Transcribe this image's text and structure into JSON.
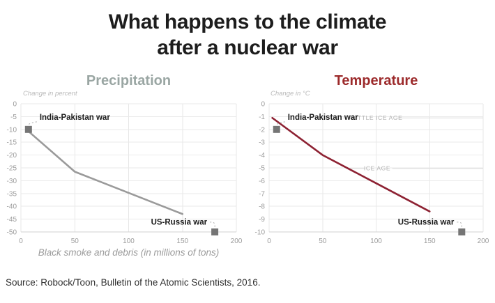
{
  "title": {
    "line1": "What happens to the climate",
    "line2": "after a nuclear war"
  },
  "source_note": "Source: Robock/Toon, Bulletin of the Atomic Scientists, 2016.",
  "colors": {
    "title_text": "#1d1d1d",
    "precipitation_accent": "#9aa6a3",
    "temperature_accent": "#9c2a2b",
    "precipitation_line": "#9a9a9a",
    "temperature_line": "#8d2132",
    "marker": "#757575",
    "grid": "#eaeaea",
    "axis_text": "#9b9b9b",
    "annotation_text": "#1b1b1b",
    "reference_text": "#b1b1b1"
  },
  "chart_data": [
    {
      "type": "line",
      "title": "Precipitation",
      "unit_label": "Change in percent",
      "xlabel": "Black smoke and debris (in millions of tons)",
      "x": [
        5,
        50,
        150
      ],
      "y": [
        -10,
        -26.5,
        -43
      ],
      "xlim": [
        0,
        200
      ],
      "ylim": [
        0,
        -50
      ],
      "xticks": [
        0,
        50,
        100,
        150,
        200
      ],
      "ytick_step": 5,
      "grid": true,
      "legend": "none",
      "line_color": "#9a9a9a",
      "title_color": "#9aa6a3",
      "markers": [
        {
          "label": "India-Pakistan war",
          "x": 7,
          "y": -10,
          "label_pos": "right-up"
        },
        {
          "label": "US-Russia war",
          "x": 180,
          "y": -50,
          "label_pos": "left-up"
        }
      ]
    },
    {
      "type": "line",
      "title": "Temperature",
      "unit_label": "Change in °C",
      "xlabel": "",
      "x": [
        3,
        50,
        100,
        150
      ],
      "y": [
        -1.1,
        -4.0,
        -6.2,
        -8.4
      ],
      "xlim": [
        0,
        200
      ],
      "ylim": [
        0,
        -10
      ],
      "xticks": [
        0,
        50,
        100,
        150,
        200
      ],
      "ytick_step": 1,
      "grid": true,
      "legend": "none",
      "line_color": "#8d2132",
      "title_color": "#9c2a2b",
      "reference_lines": [
        {
          "label": "LITTLE ICE AGE",
          "y": -1.1,
          "label_x": 101,
          "segments": [
            [
              69,
              83
            ],
            [
              120,
              200
            ]
          ]
        },
        {
          "label": "ICE AGE",
          "y": -5.05,
          "label_x": 101,
          "segments": [
            [
              74,
              90
            ],
            [
              115,
              200
            ]
          ]
        }
      ],
      "markers": [
        {
          "label": "India-Pakistan war",
          "x": 7,
          "y": -2,
          "label_pos": "right-up"
        },
        {
          "label": "US-Russia war",
          "x": 180,
          "y": -10,
          "label_pos": "left-up"
        }
      ]
    }
  ]
}
